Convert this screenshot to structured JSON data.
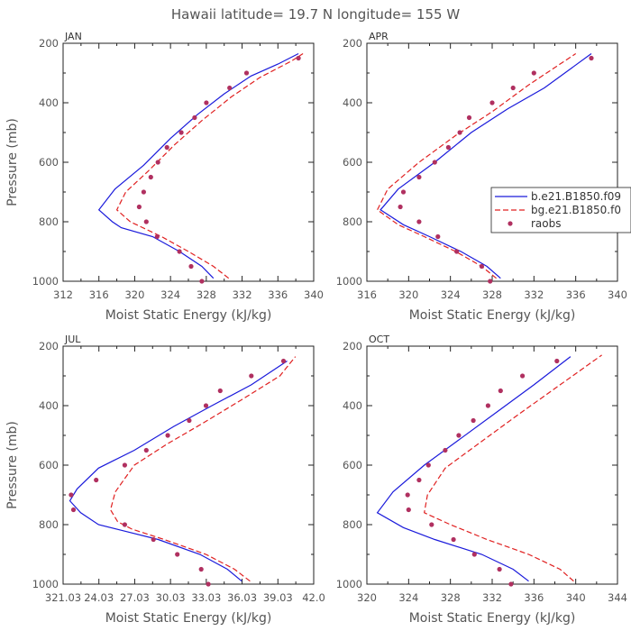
{
  "figure": {
    "title": "Hawaii  latitude= 19.7 N longitude= 155 W"
  },
  "legend": {
    "entries": [
      {
        "label": "b.e21.B1850.f09",
        "style": "solid",
        "color": "#1a1adb"
      },
      {
        "label": "bg.e21.B1850.f0",
        "style": "dashed",
        "color": "#e02020"
      },
      {
        "label": "raobs",
        "style": "dot",
        "color": "#b03060"
      }
    ]
  },
  "colors": {
    "series1": "#1a1adb",
    "series2": "#e02020",
    "obs": "#b03060"
  },
  "chart_data": [
    {
      "type": "line",
      "label": "JAN",
      "xlabel": "Moist Static Energy (kJ/kg)",
      "ylabel": "Pressure (mb)",
      "xlim": [
        312,
        340
      ],
      "ylim": [
        200,
        1000
      ],
      "y_reversed": true,
      "xticks": [
        "312",
        "316",
        "320",
        "324",
        "328",
        "332",
        "336",
        "340"
      ],
      "yticks": [
        "200",
        "400",
        "600",
        "800",
        "1000"
      ],
      "series": [
        {
          "name": "b.e21.B1850.f09",
          "style": "solid",
          "points": [
            [
              328.8,
              990
            ],
            [
              327.5,
              950
            ],
            [
              325,
              900
            ],
            [
              322,
              850
            ],
            [
              318.5,
              820
            ],
            [
              317.5,
              800
            ],
            [
              316,
              760
            ],
            [
              317.8,
              690
            ],
            [
              321,
              610
            ],
            [
              324,
              520
            ],
            [
              327,
              440
            ],
            [
              330,
              370
            ],
            [
              333,
              310
            ],
            [
              336,
              270
            ],
            [
              338.3,
              235
            ]
          ]
        },
        {
          "name": "bg.e21.B1850.f0",
          "style": "dashed",
          "points": [
            [
              330.5,
              990
            ],
            [
              328.8,
              950
            ],
            [
              326,
              900
            ],
            [
              323,
              850
            ],
            [
              319.5,
              800
            ],
            [
              318,
              760
            ],
            [
              319,
              700
            ],
            [
              321.5,
              630
            ],
            [
              324.5,
              540
            ],
            [
              327.5,
              460
            ],
            [
              330.8,
              380
            ],
            [
              334,
              315
            ],
            [
              337.5,
              260
            ],
            [
              338.8,
              235
            ]
          ]
        },
        {
          "name": "raobs",
          "style": "dots",
          "points": [
            [
              327.5,
              1000
            ],
            [
              326.3,
              950
            ],
            [
              325,
              900
            ],
            [
              322.5,
              850
            ],
            [
              321.3,
              800
            ],
            [
              320.5,
              750
            ],
            [
              321,
              700
            ],
            [
              321.8,
              650
            ],
            [
              322.6,
              600
            ],
            [
              323.6,
              550
            ],
            [
              325.2,
              500
            ],
            [
              326.7,
              450
            ],
            [
              328,
              400
            ],
            [
              330.6,
              350
            ],
            [
              332.5,
              300
            ],
            [
              338.3,
              250
            ]
          ]
        }
      ]
    },
    {
      "type": "line",
      "label": "APR",
      "xlabel": "Moist Static Energy (kJ/kg)",
      "ylabel": "",
      "xlim": [
        316,
        340
      ],
      "ylim": [
        200,
        1000
      ],
      "y_reversed": true,
      "xticks": [
        "316",
        "320",
        "324",
        "328",
        "332",
        "336",
        "340"
      ],
      "yticks": [
        "200",
        "400",
        "600",
        "800",
        "1000"
      ],
      "series": [
        {
          "name": "b.e21.B1850.f09",
          "style": "solid",
          "points": [
            [
              328.8,
              990
            ],
            [
              327.5,
              950
            ],
            [
              325,
              900
            ],
            [
              322,
              850
            ],
            [
              319.5,
              810
            ],
            [
              317.3,
              760
            ],
            [
              319,
              690
            ],
            [
              322.5,
              600
            ],
            [
              326,
              500
            ],
            [
              329.5,
              420
            ],
            [
              333,
              350
            ],
            [
              337.5,
              235
            ]
          ]
        },
        {
          "name": "bg.e21.B1850.f0",
          "style": "dashed",
          "points": [
            [
              328.4,
              990
            ],
            [
              327,
              950
            ],
            [
              324.5,
              900
            ],
            [
              321.5,
              850
            ],
            [
              319,
              810
            ],
            [
              317,
              760
            ],
            [
              318,
              690
            ],
            [
              321,
              600
            ],
            [
              324.5,
              510
            ],
            [
              328,
              430
            ],
            [
              331.5,
              340
            ],
            [
              336,
              235
            ]
          ]
        },
        {
          "name": "raobs",
          "style": "dots",
          "points": [
            [
              327.8,
              1000
            ],
            [
              327,
              950
            ],
            [
              324.6,
              900
            ],
            [
              322.8,
              850
            ],
            [
              321,
              800
            ],
            [
              319.2,
              750
            ],
            [
              319.5,
              700
            ],
            [
              321,
              650
            ],
            [
              322.5,
              600
            ],
            [
              323.8,
              550
            ],
            [
              324.9,
              500
            ],
            [
              325.8,
              450
            ],
            [
              328,
              400
            ],
            [
              330,
              350
            ],
            [
              332,
              300
            ],
            [
              337.5,
              250
            ]
          ]
        }
      ]
    },
    {
      "type": "line",
      "label": "JUL",
      "xlabel": "Moist Static Energy (kJ/kg)",
      "ylabel": "Pressure (mb)",
      "xlim": [
        321.03,
        342.03
      ],
      "ylim": [
        200,
        1000
      ],
      "y_reversed": true,
      "xticks": [
        "321.03",
        "24.03",
        "27.03",
        "30.03",
        "33.03",
        "36.03",
        "39.03",
        "42.0"
      ],
      "yticks": [
        "200",
        "400",
        "600",
        "800",
        "1000"
      ],
      "series": [
        {
          "name": "b.e21.B1850.f09",
          "style": "solid",
          "points": [
            [
              336,
              990
            ],
            [
              334.8,
              950
            ],
            [
              332.5,
              900
            ],
            [
              329,
              850
            ],
            [
              326,
              820
            ],
            [
              324,
              800
            ],
            [
              322.5,
              760
            ],
            [
              321.6,
              720
            ],
            [
              322.2,
              680
            ],
            [
              324,
              610
            ],
            [
              327,
              550
            ],
            [
              330.3,
              470
            ],
            [
              333.5,
              400
            ],
            [
              336.8,
              330
            ],
            [
              339.8,
              250
            ]
          ]
        },
        {
          "name": "bg.e21.B1850.f0",
          "style": "dashed",
          "points": [
            [
              336.7,
              990
            ],
            [
              335.4,
              950
            ],
            [
              333,
              900
            ],
            [
              329.5,
              850
            ],
            [
              326.8,
              815
            ],
            [
              325.6,
              790
            ],
            [
              325,
              750
            ],
            [
              325.4,
              690
            ],
            [
              327,
              600
            ],
            [
              329.7,
              530
            ],
            [
              332.7,
              460
            ],
            [
              336,
              380
            ],
            [
              339.2,
              300
            ],
            [
              340.5,
              235
            ]
          ]
        },
        {
          "name": "raobs",
          "style": "dots",
          "points": [
            [
              333.2,
              1000
            ],
            [
              332.6,
              950
            ],
            [
              330.6,
              900
            ],
            [
              328.6,
              850
            ],
            [
              326.2,
              800
            ],
            [
              321.9,
              750
            ],
            [
              321.7,
              700
            ],
            [
              323.8,
              650
            ],
            [
              326.2,
              600
            ],
            [
              328,
              550
            ],
            [
              329.8,
              500
            ],
            [
              331.6,
              450
            ],
            [
              333,
              400
            ],
            [
              334.2,
              350
            ],
            [
              336.8,
              300
            ],
            [
              339.5,
              250
            ]
          ]
        }
      ]
    },
    {
      "type": "line",
      "label": "OCT",
      "xlabel": "Moist Static Energy (kJ/kg)",
      "ylabel": "",
      "xlim": [
        320,
        344
      ],
      "ylim": [
        200,
        1000
      ],
      "y_reversed": true,
      "xticks": [
        "320",
        "324",
        "328",
        "332",
        "336",
        "340",
        "344"
      ],
      "yticks": [
        "200",
        "400",
        "600",
        "800",
        "1000"
      ],
      "series": [
        {
          "name": "b.e21.B1850.f09",
          "style": "solid",
          "points": [
            [
              335.5,
              990
            ],
            [
              334,
              950
            ],
            [
              331,
              900
            ],
            [
              326.5,
              850
            ],
            [
              323.5,
              810
            ],
            [
              321,
              760
            ],
            [
              322.5,
              690
            ],
            [
              325.5,
              600
            ],
            [
              329,
              510
            ],
            [
              332.5,
              420
            ],
            [
              336,
              330
            ],
            [
              339.5,
              235
            ]
          ]
        },
        {
          "name": "bg.e21.B1850.f0",
          "style": "dashed",
          "points": [
            [
              339.8,
              990
            ],
            [
              338.5,
              950
            ],
            [
              335.5,
              900
            ],
            [
              331.5,
              850
            ],
            [
              328,
              800
            ],
            [
              325.5,
              760
            ],
            [
              325.8,
              700
            ],
            [
              327.5,
              610
            ],
            [
              331,
              520
            ],
            [
              334.5,
              430
            ],
            [
              338.5,
              330
            ],
            [
              342.5,
              230
            ]
          ]
        },
        {
          "name": "raobs",
          "style": "dots",
          "points": [
            [
              333.8,
              1000
            ],
            [
              332.7,
              950
            ],
            [
              330.3,
              900
            ],
            [
              328.3,
              850
            ],
            [
              326.2,
              800
            ],
            [
              324,
              750
            ],
            [
              323.9,
              700
            ],
            [
              325,
              650
            ],
            [
              325.9,
              600
            ],
            [
              327.5,
              550
            ],
            [
              328.8,
              500
            ],
            [
              330.2,
              450
            ],
            [
              331.6,
              400
            ],
            [
              332.8,
              350
            ],
            [
              334.9,
              300
            ],
            [
              338.2,
              250
            ]
          ]
        }
      ]
    }
  ]
}
